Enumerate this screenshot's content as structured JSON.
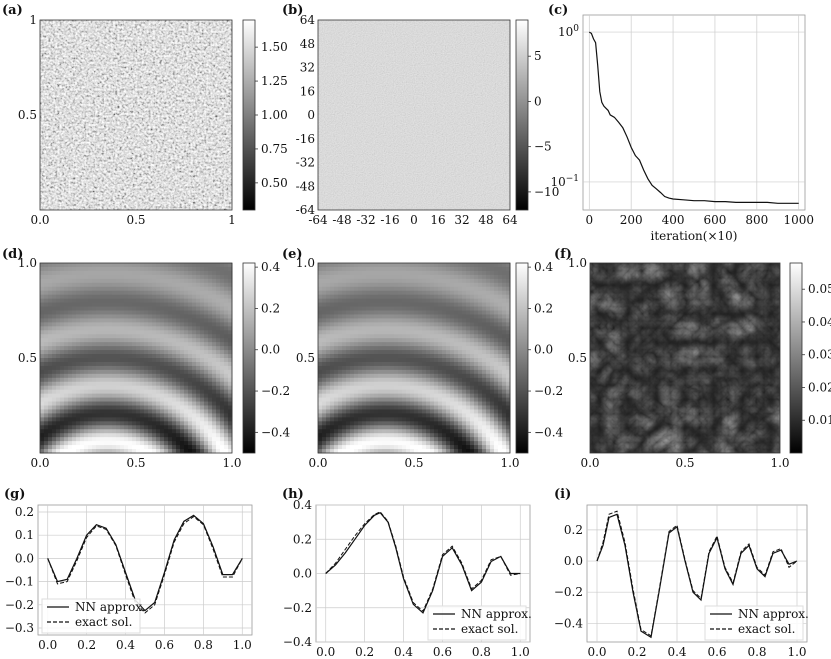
{
  "panels": {
    "a": {
      "label": "(a)"
    },
    "b": {
      "label": "(b)"
    },
    "c": {
      "label": "(c)"
    },
    "d": {
      "label": "(d)"
    },
    "e": {
      "label": "(e)"
    },
    "f": {
      "label": "(f)"
    },
    "g": {
      "label": "(g)"
    },
    "h": {
      "label": "(h)"
    },
    "i": {
      "label": "(i)"
    }
  },
  "chart_data": [
    {
      "id": "a",
      "type": "heatmap",
      "description_visible": "random field",
      "x_ticks": [
        "0.0",
        "0.5",
        "1"
      ],
      "y_ticks": [
        "0.5",
        "1"
      ],
      "xlim": [
        0,
        1
      ],
      "ylim": [
        0,
        1
      ],
      "colorbar": {
        "range": [
          0.3,
          1.7
        ],
        "ticks": [
          "0.50",
          "0.75",
          "1.00",
          "1.25",
          "1.50"
        ],
        "colormap": "gray"
      }
    },
    {
      "id": "b",
      "type": "heatmap",
      "x_ticks": [
        "-64",
        "-48",
        "-32",
        "-16",
        "0",
        "16",
        "32",
        "48",
        "64"
      ],
      "y_ticks": [
        "-64",
        "-48",
        "-32",
        "-16",
        "0",
        "16",
        "32",
        "48",
        "64"
      ],
      "xlim": [
        -64,
        64
      ],
      "ylim": [
        -64,
        64
      ],
      "colorbar": {
        "range": [
          -12,
          9
        ],
        "ticks": [
          "5",
          "0",
          "−5",
          "−10"
        ],
        "colormap": "gray"
      }
    },
    {
      "id": "c",
      "type": "line",
      "xlabel": "iteration(×10)",
      "yscale": "log",
      "x_ticks": [
        "0",
        "200",
        "400",
        "600",
        "800",
        "1000"
      ],
      "y_ticks": [
        "10^0",
        "10^-1"
      ],
      "xlim": [
        -30,
        1030
      ],
      "ylim": [
        0.065,
        1.3
      ],
      "grid": true,
      "series": [
        {
          "x": [
            0,
            10,
            20,
            30,
            40,
            50,
            60,
            70,
            80,
            90,
            100,
            120,
            140,
            160,
            180,
            200,
            220,
            240,
            260,
            280,
            300,
            320,
            340,
            360,
            380,
            400,
            450,
            500,
            550,
            600,
            650,
            700,
            750,
            800,
            850,
            900,
            950,
            1000
          ],
          "y": [
            1.0,
            0.98,
            0.9,
            0.85,
            0.6,
            0.4,
            0.34,
            0.32,
            0.31,
            0.3,
            0.28,
            0.27,
            0.25,
            0.23,
            0.2,
            0.17,
            0.15,
            0.14,
            0.12,
            0.105,
            0.095,
            0.09,
            0.085,
            0.08,
            0.078,
            0.077,
            0.076,
            0.075,
            0.075,
            0.074,
            0.074,
            0.073,
            0.073,
            0.073,
            0.073,
            0.072,
            0.072,
            0.072
          ]
        }
      ]
    },
    {
      "id": "d",
      "type": "heatmap",
      "x_ticks": [
        "0.0",
        "0.5",
        "1.0"
      ],
      "y_ticks": [
        "0.5",
        "1.0"
      ],
      "xlim": [
        0,
        1
      ],
      "ylim": [
        0,
        1
      ],
      "colorbar": {
        "range": [
          -0.5,
          0.42
        ],
        "ticks": [
          "0.4",
          "0.2",
          "0.0",
          "−0.2",
          "−0.4"
        ],
        "colormap": "gray"
      }
    },
    {
      "id": "e",
      "type": "heatmap",
      "x_ticks": [
        "0.0",
        "0.5",
        "1.0"
      ],
      "y_ticks": [
        "0.5",
        "1.0"
      ],
      "xlim": [
        0,
        1
      ],
      "ylim": [
        0,
        1
      ],
      "colorbar": {
        "range": [
          -0.5,
          0.42
        ],
        "ticks": [
          "0.4",
          "0.2",
          "0.0",
          "−0.2",
          "−0.4"
        ],
        "colormap": "gray"
      }
    },
    {
      "id": "f",
      "type": "heatmap",
      "x_ticks": [
        "0.0",
        "0.5",
        "1.0"
      ],
      "y_ticks": [
        "0.5",
        "1.0"
      ],
      "xlim": [
        0,
        1
      ],
      "ylim": [
        0,
        1
      ],
      "colorbar": {
        "range": [
          0.0,
          0.058
        ],
        "ticks": [
          "0.05",
          "0.04",
          "0.03",
          "0.02",
          "0.01"
        ],
        "colormap": "gray"
      }
    },
    {
      "id": "g",
      "type": "line",
      "x_ticks": [
        "0.0",
        "0.2",
        "0.4",
        "0.6",
        "0.8",
        "1.0"
      ],
      "y_ticks": [
        "0.2",
        "0.1",
        "0.0",
        "−0.1",
        "−0.2",
        "−0.3"
      ],
      "xlim": [
        -0.05,
        1.05
      ],
      "ylim": [
        -0.33,
        0.23
      ],
      "grid": true,
      "legend": {
        "placement": "bottom-left",
        "entries": [
          "NN approx.",
          "exact sol."
        ]
      },
      "series": [
        {
          "name": "NN approx.",
          "style": "solid",
          "x": [
            0,
            0.05,
            0.1,
            0.15,
            0.2,
            0.25,
            0.3,
            0.35,
            0.4,
            0.45,
            0.5,
            0.55,
            0.6,
            0.65,
            0.7,
            0.75,
            0.8,
            0.85,
            0.9,
            0.95,
            1.0
          ],
          "y": [
            0.0,
            -0.1,
            -0.09,
            0.0,
            0.1,
            0.145,
            0.13,
            0.06,
            -0.06,
            -0.18,
            -0.225,
            -0.19,
            -0.06,
            0.08,
            0.16,
            0.185,
            0.15,
            0.05,
            -0.07,
            -0.07,
            0.0
          ]
        },
        {
          "name": "exact sol.",
          "style": "dashed",
          "x": [
            0,
            0.05,
            0.1,
            0.15,
            0.2,
            0.25,
            0.3,
            0.35,
            0.4,
            0.45,
            0.5,
            0.55,
            0.6,
            0.65,
            0.7,
            0.75,
            0.8,
            0.85,
            0.9,
            0.95,
            1.0
          ],
          "y": [
            0.0,
            -0.11,
            -0.1,
            -0.01,
            0.09,
            0.14,
            0.125,
            0.055,
            -0.07,
            -0.19,
            -0.235,
            -0.2,
            -0.07,
            0.07,
            0.15,
            0.18,
            0.145,
            0.04,
            -0.08,
            -0.08,
            0.0
          ]
        }
      ]
    },
    {
      "id": "h",
      "type": "line",
      "x_ticks": [
        "0.0",
        "0.2",
        "0.4",
        "0.6",
        "0.8",
        "1.0"
      ],
      "y_ticks": [
        "0.4",
        "0.2",
        "0.0",
        "−0.2",
        "−0.4"
      ],
      "xlim": [
        -0.05,
        1.05
      ],
      "ylim": [
        -0.4,
        0.4
      ],
      "grid": true,
      "legend": {
        "placement": "bottom-right",
        "entries": [
          "NN approx.",
          "exact sol."
        ]
      },
      "series": [
        {
          "name": "NN approx.",
          "style": "solid",
          "x": [
            0,
            0.05,
            0.1,
            0.15,
            0.2,
            0.25,
            0.28,
            0.32,
            0.36,
            0.4,
            0.45,
            0.5,
            0.55,
            0.6,
            0.65,
            0.7,
            0.75,
            0.8,
            0.85,
            0.9,
            0.95,
            1.0
          ],
          "y": [
            0.0,
            0.05,
            0.12,
            0.2,
            0.28,
            0.34,
            0.355,
            0.3,
            0.15,
            -0.03,
            -0.18,
            -0.23,
            -0.1,
            0.1,
            0.15,
            0.05,
            -0.1,
            -0.05,
            0.07,
            0.1,
            0.0,
            0.0
          ]
        },
        {
          "name": "exact sol.",
          "style": "dashed",
          "x": [
            0,
            0.05,
            0.1,
            0.15,
            0.2,
            0.25,
            0.28,
            0.32,
            0.36,
            0.4,
            0.45,
            0.5,
            0.55,
            0.6,
            0.65,
            0.7,
            0.75,
            0.8,
            0.85,
            0.9,
            0.95,
            1.0
          ],
          "y": [
            0.0,
            0.06,
            0.14,
            0.22,
            0.29,
            0.345,
            0.36,
            0.305,
            0.16,
            -0.02,
            -0.17,
            -0.22,
            -0.09,
            0.11,
            0.16,
            0.06,
            -0.09,
            -0.04,
            0.08,
            0.1,
            -0.01,
            0.0
          ]
        }
      ]
    },
    {
      "id": "i",
      "type": "line",
      "x_ticks": [
        "0.0",
        "0.2",
        "0.4",
        "0.6",
        "0.8",
        "1.0"
      ],
      "y_ticks": [
        "0.2",
        "0.0",
        "−0.2",
        "−0.4"
      ],
      "xlim": [
        -0.05,
        1.05
      ],
      "ylim": [
        -0.52,
        0.36
      ],
      "grid": true,
      "legend": {
        "placement": "bottom-right",
        "entries": [
          "NN approx.",
          "exact sol."
        ]
      },
      "series": [
        {
          "name": "NN approx.",
          "style": "solid",
          "x": [
            0,
            0.03,
            0.06,
            0.1,
            0.14,
            0.18,
            0.22,
            0.27,
            0.31,
            0.36,
            0.4,
            0.44,
            0.48,
            0.52,
            0.56,
            0.6,
            0.64,
            0.68,
            0.72,
            0.76,
            0.8,
            0.84,
            0.88,
            0.92,
            0.96,
            1.0
          ],
          "y": [
            0.0,
            0.1,
            0.28,
            0.3,
            0.1,
            -0.2,
            -0.45,
            -0.49,
            -0.2,
            0.18,
            0.22,
            0.0,
            -0.2,
            -0.25,
            0.05,
            0.15,
            -0.05,
            -0.15,
            0.05,
            0.1,
            -0.05,
            -0.1,
            0.05,
            0.07,
            -0.02,
            0.0
          ]
        },
        {
          "name": "exact sol.",
          "style": "dashed",
          "x": [
            0,
            0.03,
            0.06,
            0.1,
            0.14,
            0.18,
            0.22,
            0.27,
            0.31,
            0.36,
            0.4,
            0.44,
            0.48,
            0.52,
            0.56,
            0.6,
            0.64,
            0.68,
            0.72,
            0.76,
            0.8,
            0.84,
            0.88,
            0.92,
            0.96,
            1.0
          ],
          "y": [
            0.0,
            0.12,
            0.3,
            0.32,
            0.12,
            -0.18,
            -0.44,
            -0.48,
            -0.19,
            0.19,
            0.23,
            0.01,
            -0.19,
            -0.24,
            0.06,
            0.16,
            -0.04,
            -0.14,
            0.06,
            0.11,
            -0.04,
            -0.09,
            0.06,
            0.08,
            -0.04,
            0.0
          ]
        }
      ]
    }
  ]
}
